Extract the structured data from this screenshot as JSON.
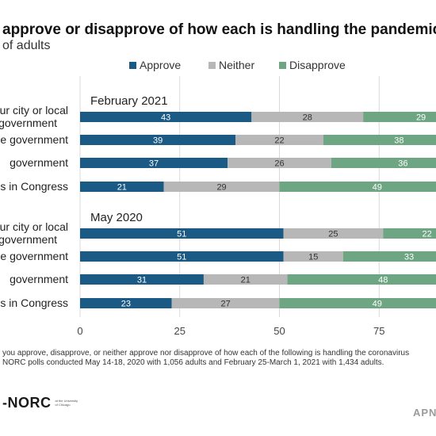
{
  "chart_data": {
    "type": "bar",
    "stacked": true,
    "orientation": "horizontal",
    "title": "approve or disapprove of how each is handling the pandemic?",
    "subtitle": "of adults",
    "legend_position": "top",
    "xlim": [
      0,
      100
    ],
    "x_ticks": [
      "0",
      "25",
      "50",
      "75"
    ],
    "grid": true,
    "colors": {
      "Approve": "#1b5a84",
      "Neither": "#b7b7b7",
      "Disapprove": "#6ea583"
    },
    "series_names": [
      "Approve",
      "Neither",
      "Disapprove"
    ],
    "groups": [
      {
        "label": "February 2021",
        "rows": [
          {
            "category_lines": [
              "our city or local",
              "government"
            ],
            "values": [
              43,
              28,
              29
            ]
          },
          {
            "category_lines": [
              "e government"
            ],
            "values": [
              39,
              22,
              38
            ]
          },
          {
            "category_lines": [
              "government"
            ],
            "values": [
              37,
              26,
              36
            ]
          },
          {
            "category_lines": [
              "s in Congress"
            ],
            "values": [
              21,
              29,
              49
            ]
          }
        ]
      },
      {
        "label": "May 2020",
        "rows": [
          {
            "category_lines": [
              "our city or local",
              "government"
            ],
            "values": [
              51,
              25,
              22
            ]
          },
          {
            "category_lines": [
              "e government"
            ],
            "values": [
              51,
              15,
              33
            ]
          },
          {
            "category_lines": [
              "government"
            ],
            "values": [
              31,
              21,
              48
            ]
          },
          {
            "category_lines": [
              "s in Congress"
            ],
            "values": [
              23,
              27,
              49
            ]
          }
        ]
      }
    ]
  },
  "note_lines": [
    "you approve, disapprove, or neither approve nor disapprove of how each of the following is handling the coronavirus",
    "NORC polls conducted May 14-18, 2020 with 1,056 adults and February 25-March 1, 2021 with 1,434 adults."
  ],
  "logo": {
    "text": "-NORC",
    "small": "at the University of Chicago"
  },
  "brand": "APN"
}
